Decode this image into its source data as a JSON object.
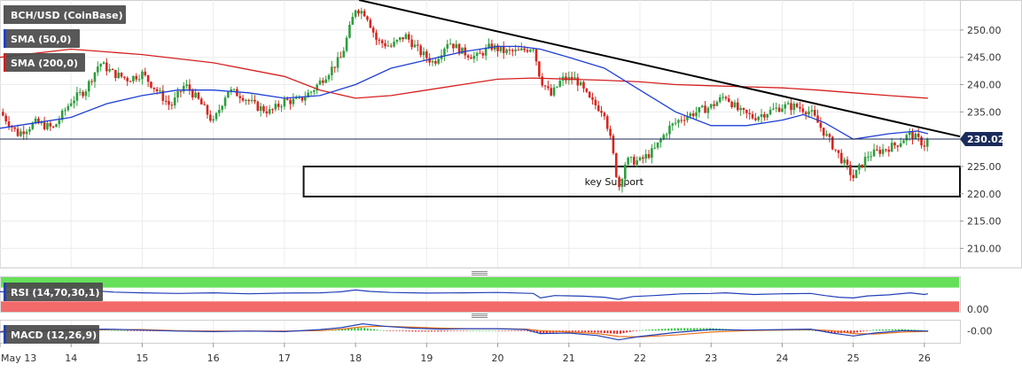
{
  "chart_data": {
    "type": "candlestick",
    "title": "BCH/USD (CoinBase)",
    "legend": [
      {
        "label": "BCH/USD (CoinBase)",
        "color": "#555555"
      },
      {
        "label": "SMA (50,0)",
        "color": "#1f3fd6"
      },
      {
        "label": "SMA (200,0)",
        "color": "#d62020"
      }
    ],
    "price_axis": {
      "ticks": [
        {
          "value": 250,
          "label": "250.00"
        },
        {
          "value": 245,
          "label": "245.00"
        },
        {
          "value": 240,
          "label": "240.00"
        },
        {
          "value": 235,
          "label": "235.00"
        },
        {
          "value": 230,
          "label": "230.00"
        },
        {
          "value": 225,
          "label": "225.00"
        },
        {
          "value": 220,
          "label": "220.00"
        },
        {
          "value": 215,
          "label": "215.00"
        },
        {
          "value": 210,
          "label": "210.00"
        }
      ],
      "ylim": [
        206.5,
        255.5
      ]
    },
    "current_price": {
      "value": 230.02,
      "label": "230.02"
    },
    "x_axis": {
      "xlim": [
        13.0,
        26.5
      ],
      "ticks": [
        {
          "x": 13,
          "label": "May 13"
        },
        {
          "x": 14,
          "label": "14"
        },
        {
          "x": 15,
          "label": "15"
        },
        {
          "x": 16,
          "label": "16"
        },
        {
          "x": 17,
          "label": "17"
        },
        {
          "x": 18,
          "label": "18"
        },
        {
          "x": 19,
          "label": "19"
        },
        {
          "x": 20,
          "label": "20"
        },
        {
          "x": 21,
          "label": "21"
        },
        {
          "x": 22,
          "label": "22"
        },
        {
          "x": 23,
          "label": "23"
        },
        {
          "x": 24,
          "label": "24"
        },
        {
          "x": 25,
          "label": "25"
        },
        {
          "x": 26,
          "label": "26"
        }
      ]
    },
    "price_path": [
      [
        13.0,
        235
      ],
      [
        13.25,
        231
      ],
      [
        13.5,
        233
      ],
      [
        13.75,
        232
      ],
      [
        14.0,
        237
      ],
      [
        14.2,
        239
      ],
      [
        14.4,
        244
      ],
      [
        14.6,
        242
      ],
      [
        14.8,
        241
      ],
      [
        15.0,
        242
      ],
      [
        15.2,
        239
      ],
      [
        15.4,
        236
      ],
      [
        15.6,
        240
      ],
      [
        15.8,
        237
      ],
      [
        16.0,
        233
      ],
      [
        16.2,
        239
      ],
      [
        16.4,
        238
      ],
      [
        16.6,
        236
      ],
      [
        16.8,
        235
      ],
      [
        17.0,
        237
      ],
      [
        17.2,
        237
      ],
      [
        17.4,
        239
      ],
      [
        17.6,
        242
      ],
      [
        17.8,
        245
      ],
      [
        18.0,
        254
      ],
      [
        18.15,
        253
      ],
      [
        18.3,
        248
      ],
      [
        18.5,
        247
      ],
      [
        18.7,
        249
      ],
      [
        18.9,
        246
      ],
      [
        19.1,
        244
      ],
      [
        19.3,
        248
      ],
      [
        19.5,
        246
      ],
      [
        19.7,
        245
      ],
      [
        19.9,
        247
      ],
      [
        20.1,
        246
      ],
      [
        20.3,
        246
      ],
      [
        20.5,
        247
      ],
      [
        20.6,
        241
      ],
      [
        20.75,
        238
      ],
      [
        20.9,
        241
      ],
      [
        21.1,
        241
      ],
      [
        21.3,
        237
      ],
      [
        21.5,
        235
      ],
      [
        21.6,
        229
      ],
      [
        21.7,
        221
      ],
      [
        21.8,
        226
      ],
      [
        22.0,
        226
      ],
      [
        22.2,
        228
      ],
      [
        22.4,
        232
      ],
      [
        22.6,
        234
      ],
      [
        22.8,
        235
      ],
      [
        23.0,
        236
      ],
      [
        23.2,
        238
      ],
      [
        23.4,
        235
      ],
      [
        23.6,
        234
      ],
      [
        23.8,
        235
      ],
      [
        24.0,
        236
      ],
      [
        24.2,
        236
      ],
      [
        24.4,
        235
      ],
      [
        24.6,
        231
      ],
      [
        24.8,
        227
      ],
      [
        25.0,
        223
      ],
      [
        25.2,
        227
      ],
      [
        25.4,
        228
      ],
      [
        25.6,
        229
      ],
      [
        25.8,
        231
      ],
      [
        26.0,
        229
      ],
      [
        26.05,
        230.02
      ]
    ],
    "sma50": [
      [
        13.0,
        232
      ],
      [
        13.5,
        233
      ],
      [
        14.0,
        234
      ],
      [
        14.5,
        236.5
      ],
      [
        15.0,
        238
      ],
      [
        15.5,
        239
      ],
      [
        16.0,
        239
      ],
      [
        16.5,
        238.5
      ],
      [
        17.0,
        237.5
      ],
      [
        17.5,
        238
      ],
      [
        18.0,
        240
      ],
      [
        18.5,
        243
      ],
      [
        19.0,
        244.5
      ],
      [
        19.5,
        246
      ],
      [
        20.0,
        247
      ],
      [
        20.3,
        247
      ],
      [
        20.6,
        246.5
      ],
      [
        21.0,
        245
      ],
      [
        21.5,
        243
      ],
      [
        22.0,
        239
      ],
      [
        22.5,
        235
      ],
      [
        23.0,
        232.5
      ],
      [
        23.5,
        232.5
      ],
      [
        24.0,
        233.5
      ],
      [
        24.3,
        234.5
      ],
      [
        24.6,
        233
      ],
      [
        25.0,
        230
      ],
      [
        25.5,
        231
      ],
      [
        25.9,
        231.5
      ],
      [
        26.05,
        231
      ]
    ],
    "sma200": [
      [
        13.0,
        245
      ],
      [
        14.0,
        246.5
      ],
      [
        15.0,
        245.5
      ],
      [
        16.0,
        244
      ],
      [
        17.0,
        241.5
      ],
      [
        17.5,
        239
      ],
      [
        18.0,
        237.5
      ],
      [
        18.5,
        238
      ],
      [
        19.0,
        239
      ],
      [
        19.5,
        240
      ],
      [
        20.0,
        241
      ],
      [
        20.5,
        241.2
      ],
      [
        21.0,
        241
      ],
      [
        21.5,
        240.8
      ],
      [
        22.0,
        240.5
      ],
      [
        22.5,
        240
      ],
      [
        23.0,
        239.8
      ],
      [
        23.5,
        239.6
      ],
      [
        24.0,
        239.4
      ],
      [
        24.5,
        239
      ],
      [
        25.0,
        238.5
      ],
      [
        25.5,
        238
      ],
      [
        26.05,
        237.5
      ]
    ],
    "trendline": [
      [
        18.05,
        255.5
      ],
      [
        26.5,
        230.5
      ]
    ],
    "zones": [
      {
        "x_start": 17.27,
        "x_end": 26.5,
        "y_top": 225,
        "y_bottom": 219.5,
        "label": "key Support"
      }
    ],
    "rsi": {
      "label": "RSI (14,70,30,1)",
      "ticks": [
        {
          "value": 0.0,
          "label": "0.00"
        }
      ],
      "overbought": 70,
      "oversold": 30,
      "line": [
        [
          13.0,
          58
        ],
        [
          13.5,
          55
        ],
        [
          14.0,
          57
        ],
        [
          14.3,
          61
        ],
        [
          14.6,
          57
        ],
        [
          15.0,
          55
        ],
        [
          15.5,
          53
        ],
        [
          16.0,
          55
        ],
        [
          16.5,
          52
        ],
        [
          17.0,
          54
        ],
        [
          17.5,
          55
        ],
        [
          17.8,
          58
        ],
        [
          18.0,
          63
        ],
        [
          18.2,
          59
        ],
        [
          18.5,
          56
        ],
        [
          19.0,
          54
        ],
        [
          19.5,
          55
        ],
        [
          20.0,
          56
        ],
        [
          20.5,
          53
        ],
        [
          20.6,
          40
        ],
        [
          20.8,
          47
        ],
        [
          21.2,
          45
        ],
        [
          21.5,
          42
        ],
        [
          21.7,
          36
        ],
        [
          21.9,
          44
        ],
        [
          22.2,
          47
        ],
        [
          22.6,
          52
        ],
        [
          23.0,
          53
        ],
        [
          23.2,
          55
        ],
        [
          23.6,
          50
        ],
        [
          24.0,
          52
        ],
        [
          24.4,
          53
        ],
        [
          24.6,
          47
        ],
        [
          24.8,
          42
        ],
        [
          25.0,
          40
        ],
        [
          25.2,
          46
        ],
        [
          25.5,
          49
        ],
        [
          25.8,
          55
        ],
        [
          26.0,
          50
        ],
        [
          26.05,
          52
        ]
      ]
    },
    "macd": {
      "label": "MACD (12,26,9)",
      "ticks": [
        {
          "value": 0.0,
          "label": "-0.00"
        }
      ],
      "macd_line": [
        [
          13.0,
          -0.3
        ],
        [
          13.5,
          -0.1
        ],
        [
          14.0,
          0.2
        ],
        [
          14.5,
          0.3
        ],
        [
          15.0,
          0.1
        ],
        [
          15.5,
          -0.1
        ],
        [
          16.0,
          -0.2
        ],
        [
          16.5,
          -0.1
        ],
        [
          17.0,
          -0.2
        ],
        [
          17.5,
          0.2
        ],
        [
          17.8,
          0.6
        ],
        [
          18.1,
          1.4
        ],
        [
          18.4,
          0.9
        ],
        [
          18.8,
          0.5
        ],
        [
          19.2,
          0.3
        ],
        [
          19.6,
          0.4
        ],
        [
          20.0,
          0.4
        ],
        [
          20.4,
          0.2
        ],
        [
          20.6,
          -0.6
        ],
        [
          21.0,
          -0.5
        ],
        [
          21.4,
          -1.0
        ],
        [
          21.7,
          -1.9
        ],
        [
          22.0,
          -1.2
        ],
        [
          22.5,
          -0.4
        ],
        [
          23.0,
          0.2
        ],
        [
          23.5,
          0.1
        ],
        [
          24.0,
          0.2
        ],
        [
          24.4,
          0.3
        ],
        [
          24.7,
          -0.5
        ],
        [
          25.0,
          -1.1
        ],
        [
          25.3,
          -0.5
        ],
        [
          25.7,
          0.0
        ],
        [
          26.05,
          -0.1
        ]
      ],
      "signal_line": [
        [
          13.0,
          -0.2
        ],
        [
          13.5,
          -0.2
        ],
        [
          14.0,
          0.0
        ],
        [
          14.5,
          0.2
        ],
        [
          15.0,
          0.2
        ],
        [
          15.5,
          0.0
        ],
        [
          16.0,
          -0.1
        ],
        [
          16.5,
          -0.1
        ],
        [
          17.0,
          -0.1
        ],
        [
          17.5,
          0.0
        ],
        [
          17.8,
          0.3
        ],
        [
          18.1,
          0.8
        ],
        [
          18.4,
          0.9
        ],
        [
          18.8,
          0.7
        ],
        [
          19.2,
          0.5
        ],
        [
          19.6,
          0.4
        ],
        [
          20.0,
          0.4
        ],
        [
          20.4,
          0.3
        ],
        [
          20.6,
          0.0
        ],
        [
          21.0,
          -0.3
        ],
        [
          21.4,
          -0.6
        ],
        [
          21.7,
          -1.2
        ],
        [
          22.0,
          -1.3
        ],
        [
          22.5,
          -0.9
        ],
        [
          23.0,
          -0.3
        ],
        [
          23.5,
          0.0
        ],
        [
          24.0,
          0.1
        ],
        [
          24.4,
          0.2
        ],
        [
          24.7,
          0.0
        ],
        [
          25.0,
          -0.6
        ],
        [
          25.3,
          -0.7
        ],
        [
          25.7,
          -0.3
        ],
        [
          26.05,
          -0.15
        ]
      ]
    }
  }
}
